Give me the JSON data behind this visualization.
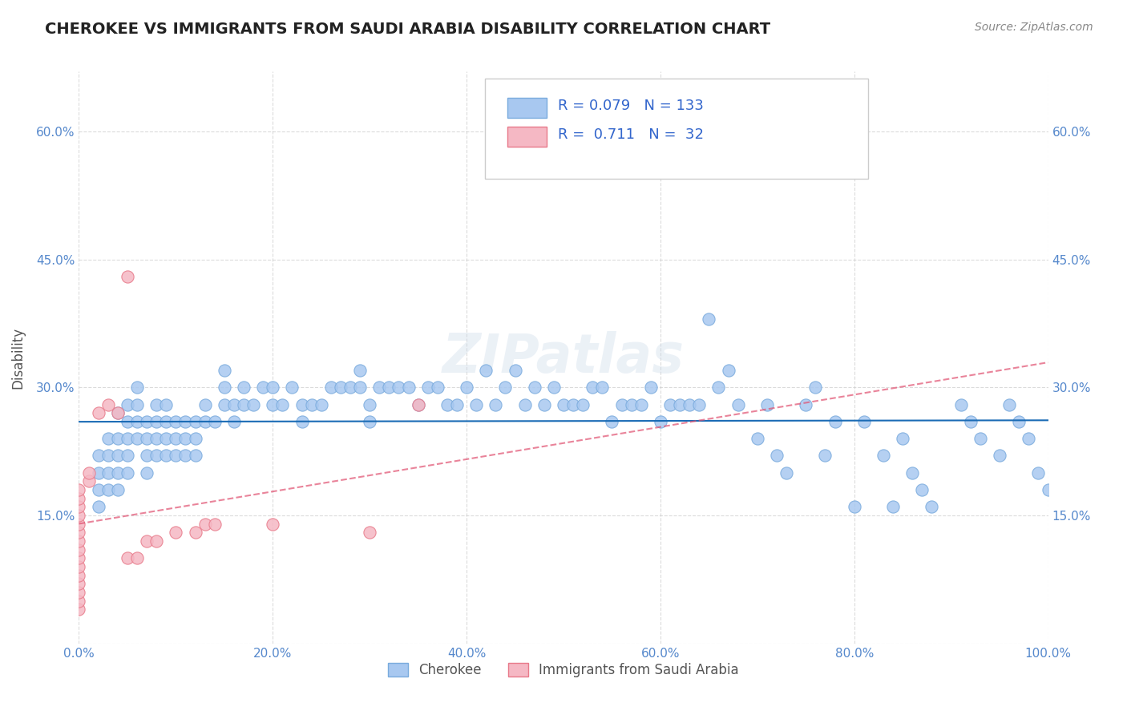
{
  "title": "CHEROKEE VS IMMIGRANTS FROM SAUDI ARABIA DISABILITY CORRELATION CHART",
  "source": "Source: ZipAtlas.com",
  "xlabel": "",
  "ylabel": "Disability",
  "xlim": [
    0,
    100
  ],
  "ylim": [
    0,
    67
  ],
  "yticks": [
    0,
    15,
    30,
    45,
    60
  ],
  "xticks": [
    0,
    20,
    40,
    60,
    80,
    100
  ],
  "ytick_labels": [
    "",
    "15.0%",
    "30.0%",
    "45.0%",
    "60.0%"
  ],
  "xtick_labels": [
    "0.0%",
    "20.0%",
    "40.0%",
    "60.0%",
    "80.0%",
    "100.0%"
  ],
  "series1_name": "Cherokee",
  "series1_color": "#a8c8f0",
  "series1_edge_color": "#7aabdd",
  "series1_R": 0.079,
  "series1_N": 133,
  "series1_trend_color": "#1a6bb5",
  "series2_name": "Immigrants from Saudi Arabia",
  "series2_color": "#f5b8c4",
  "series2_edge_color": "#e87a8a",
  "series2_R": 0.711,
  "series2_N": 32,
  "series2_trend_color": "#e05070",
  "background_color": "#ffffff",
  "grid_color": "#cccccc",
  "title_color": "#222222",
  "axis_color": "#5588cc",
  "legend_R_color": "#3366cc",
  "watermark": "ZIPatlas",
  "series1_x": [
    2,
    2,
    2,
    2,
    3,
    3,
    3,
    3,
    4,
    4,
    4,
    4,
    4,
    5,
    5,
    5,
    5,
    5,
    6,
    6,
    6,
    6,
    7,
    7,
    7,
    7,
    8,
    8,
    8,
    8,
    9,
    9,
    9,
    9,
    10,
    10,
    10,
    11,
    11,
    11,
    12,
    12,
    12,
    13,
    13,
    14,
    15,
    15,
    15,
    16,
    16,
    17,
    17,
    18,
    19,
    20,
    20,
    21,
    22,
    23,
    23,
    24,
    25,
    26,
    27,
    28,
    29,
    29,
    30,
    30,
    31,
    32,
    33,
    34,
    35,
    36,
    37,
    38,
    39,
    40,
    41,
    42,
    43,
    44,
    45,
    46,
    47,
    48,
    49,
    50,
    51,
    52,
    53,
    54,
    55,
    56,
    57,
    58,
    59,
    60,
    61,
    62,
    63,
    64,
    65,
    66,
    67,
    68,
    70,
    71,
    72,
    73,
    75,
    76,
    77,
    78,
    80,
    81,
    83,
    84,
    85,
    86,
    87,
    88,
    91,
    92,
    93,
    95,
    96,
    97,
    98,
    99,
    100
  ],
  "series1_y": [
    22,
    20,
    18,
    16,
    24,
    22,
    20,
    18,
    27,
    24,
    22,
    20,
    18,
    28,
    26,
    24,
    22,
    20,
    30,
    28,
    26,
    24,
    26,
    24,
    22,
    20,
    28,
    26,
    24,
    22,
    28,
    26,
    24,
    22,
    26,
    24,
    22,
    26,
    24,
    22,
    26,
    24,
    22,
    28,
    26,
    26,
    32,
    30,
    28,
    28,
    26,
    30,
    28,
    28,
    30,
    30,
    28,
    28,
    30,
    28,
    26,
    28,
    28,
    30,
    30,
    30,
    32,
    30,
    28,
    26,
    30,
    30,
    30,
    30,
    28,
    30,
    30,
    28,
    28,
    30,
    28,
    32,
    28,
    30,
    32,
    28,
    30,
    28,
    30,
    28,
    28,
    28,
    30,
    30,
    26,
    28,
    28,
    28,
    30,
    26,
    28,
    28,
    28,
    28,
    38,
    30,
    32,
    28,
    24,
    28,
    22,
    20,
    28,
    30,
    22,
    26,
    16,
    26,
    22,
    16,
    24,
    20,
    18,
    16,
    28,
    26,
    24,
    22,
    28,
    26,
    24,
    20,
    18
  ],
  "series2_x": [
    0,
    0,
    0,
    0,
    0,
    0,
    0,
    0,
    0,
    0,
    0,
    0,
    0,
    0,
    0,
    1,
    1,
    2,
    3,
    4,
    5,
    5,
    6,
    7,
    8,
    10,
    12,
    13,
    14,
    20,
    30,
    35
  ],
  "series2_y": [
    4,
    5,
    6,
    7,
    8,
    9,
    10,
    11,
    12,
    13,
    14,
    15,
    16,
    17,
    18,
    19,
    20,
    27,
    28,
    27,
    43,
    10,
    10,
    12,
    12,
    13,
    13,
    14,
    14,
    14,
    13,
    28
  ]
}
